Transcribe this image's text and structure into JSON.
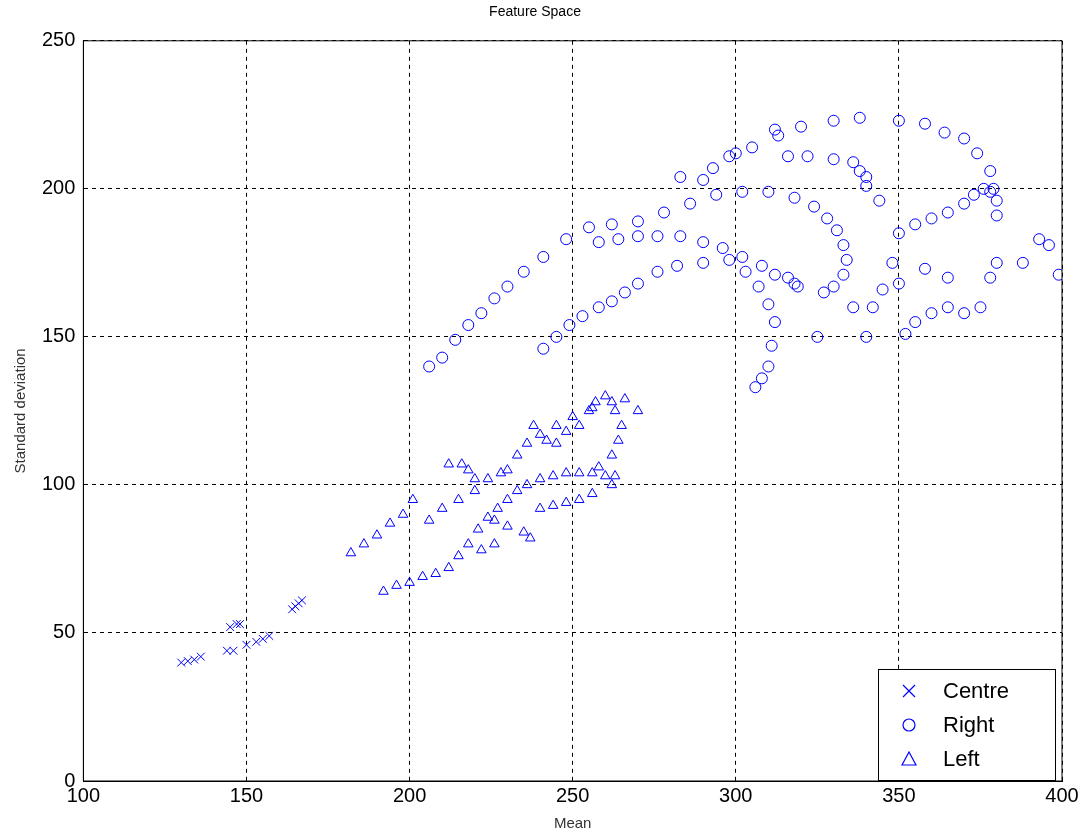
{
  "chart_data": {
    "type": "scatter",
    "title": "Feature Space",
    "xlabel": "Mean",
    "ylabel": "Standard deviation",
    "xlim": [
      100,
      400
    ],
    "xticks": [
      100,
      150,
      200,
      250,
      300,
      350,
      400
    ],
    "ylim": [
      0,
      250
    ],
    "yticks": [
      0,
      50,
      100,
      150,
      200,
      250
    ],
    "grid": true,
    "legend": "bottom right",
    "series": [
      {
        "name": "Centre",
        "color": "#0000ff",
        "marker": "cross",
        "x": [
          130,
          132,
          134,
          136,
          144,
          146,
          145,
          147,
          148,
          150,
          153,
          155,
          157,
          164,
          165,
          166,
          167
        ],
        "values": [
          40,
          40.5,
          41,
          42,
          44,
          44,
          52,
          53,
          53,
          46,
          47,
          48,
          49,
          58,
          59,
          60,
          61
        ]
      },
      {
        "name": "Right",
        "color": "#0000ff",
        "marker": "circle",
        "x": [
          206,
          210,
          214,
          218,
          222,
          226,
          230,
          235,
          241,
          248,
          255,
          262,
          270,
          278,
          286,
          294,
          302,
          310,
          318,
          324,
          328,
          331,
          333,
          334,
          333,
          330,
          327,
          241,
          245,
          249,
          253,
          258,
          262,
          266,
          270,
          276,
          282,
          290,
          298,
          303,
          307,
          310,
          312,
          311,
          310,
          308,
          306,
          258,
          264,
          270,
          276,
          283,
          290,
          296,
          302,
          308,
          312,
          316,
          318,
          319,
          290,
          293,
          298,
          305,
          312,
          320,
          330,
          338,
          350,
          358,
          364,
          370,
          374,
          378,
          379,
          380,
          380,
          316,
          322,
          330,
          336,
          338,
          340,
          340,
          344,
          325,
          340,
          352,
          355,
          360,
          365,
          370,
          375,
          378,
          380,
          388,
          393,
          396,
          399,
          365,
          358,
          345,
          350,
          348,
          336,
          342,
          350,
          355,
          360,
          365,
          370,
          373,
          376,
          378,
          300,
          313,
          283
        ],
        "values": [
          140,
          143,
          149,
          154,
          158,
          163,
          167,
          172,
          177,
          183,
          187,
          188,
          189,
          192,
          195,
          198,
          199,
          199,
          197,
          194,
          190,
          186,
          181,
          176,
          171,
          167,
          165,
          146,
          150,
          154,
          157,
          160,
          162,
          165,
          168,
          172,
          174,
          175,
          176,
          172,
          167,
          161,
          155,
          147,
          140,
          136,
          133,
          182,
          183,
          184,
          184,
          184,
          182,
          180,
          177,
          174,
          171,
          170,
          168,
          167,
          203,
          207,
          211,
          214,
          220,
          221,
          223,
          224,
          223,
          222,
          219,
          217,
          212,
          206,
          200,
          196,
          191,
          211,
          211,
          210,
          209,
          206,
          204,
          201,
          196,
          150,
          150,
          151,
          155,
          158,
          160,
          158,
          160,
          170,
          175,
          175,
          183,
          181,
          171,
          170,
          173,
          166,
          168,
          175,
          160,
          160,
          185,
          188,
          190,
          192,
          195,
          198,
          200,
          199,
          212,
          218,
          204
        ]
      },
      {
        "name": "Left",
        "color": "#0000ff",
        "marker": "triangle",
        "x": [
          182,
          186,
          190,
          194,
          198,
          201,
          192,
          196,
          200,
          204,
          208,
          212,
          215,
          218,
          221,
          224,
          227,
          230,
          233,
          236,
          240,
          244,
          248,
          252,
          256,
          260,
          263,
          258,
          262,
          264,
          265,
          263,
          260,
          257,
          255,
          250,
          245,
          240,
          236,
          233,
          230,
          228,
          224,
          220,
          215,
          210,
          206,
          212,
          216,
          218,
          220,
          226,
          230,
          235,
          237,
          226,
          222,
          240,
          244,
          248,
          252,
          256,
          262,
          238,
          242,
          245,
          248,
          252,
          256,
          262,
          266,
          270
        ],
        "values": [
          77,
          80,
          83,
          87,
          90,
          95,
          64,
          66,
          67,
          69,
          70,
          72,
          76,
          80,
          85,
          89,
          92,
          95,
          98,
          100,
          102,
          103,
          104,
          104,
          104,
          103,
          103,
          106,
          110,
          115,
          120,
          125,
          130,
          128,
          125,
          123,
          120,
          117,
          114,
          110,
          105,
          104,
          102,
          98,
          95,
          92,
          88,
          107,
          107,
          105,
          102,
          88,
          86,
          84,
          82,
          80,
          78,
          92,
          93,
          94,
          95,
          97,
          100,
          120,
          115,
          114,
          118,
          120,
          126,
          128,
          129,
          125
        ]
      }
    ]
  }
}
